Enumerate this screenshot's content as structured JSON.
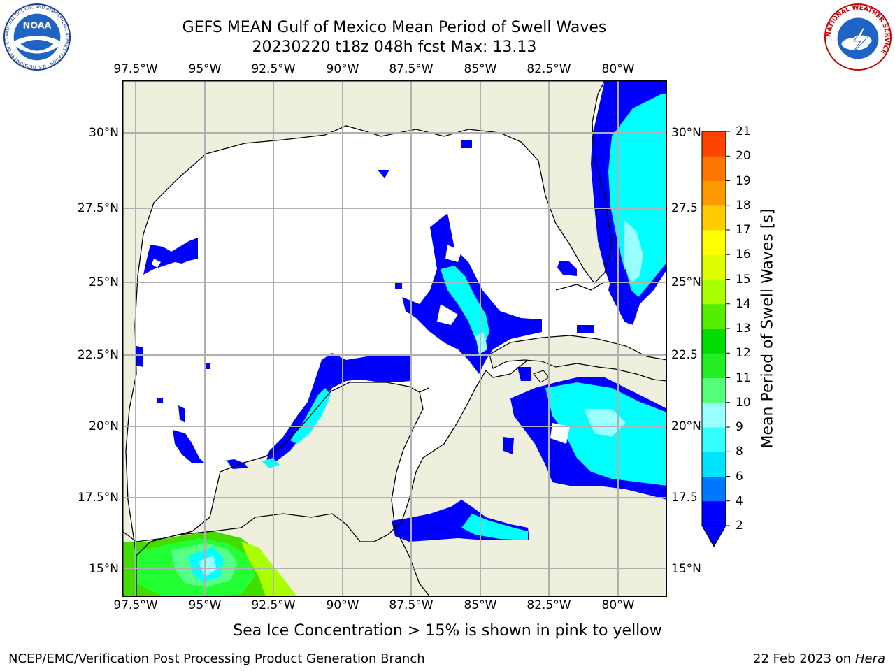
{
  "title": "GEFS MEAN Gulf of Mexico Mean Period of Swell Waves",
  "subtitle": "20230220 t18z 048h fcst   Max: 13.13",
  "lon_labels": [
    "97.5°W",
    "95°W",
    "92.5°W",
    "90°W",
    "87.5°W",
    "85°W",
    "82.5°W",
    "80°W"
  ],
  "lat_labels_left": [
    "30°N",
    "27.5°N",
    "25°N",
    "22.5°N",
    "20°N",
    "17.5°N",
    "15°N"
  ],
  "lat_labels_right": [
    "30°N",
    "27.5",
    "25°N",
    "22.5",
    "20°N",
    "17.5",
    "15°N"
  ],
  "colorbar": {
    "label": "Mean Period of Swell Waves [s]",
    "ticks": [
      "2",
      "4",
      "6",
      "8",
      "9",
      "10",
      "11",
      "12",
      "13",
      "14",
      "15",
      "16",
      "17",
      "18",
      "19",
      "20",
      "21"
    ],
    "colors": [
      "#0000ff",
      "#0077ff",
      "#00e5ff",
      "#33ffff",
      "#99ffff",
      "#55ff77",
      "#22ee22",
      "#00dd00",
      "#55ee00",
      "#aaff00",
      "#ddff00",
      "#ffff00",
      "#ffcc00",
      "#ff9900",
      "#ff7700",
      "#ff4400",
      "#ff0000"
    ]
  },
  "note": "Sea Ice Concentration > 15% is shown in pink to yellow",
  "footer_left": "NCEP/EMC/Verification Post Processing Product Generation Branch",
  "footer_date": "22 Feb 2023 on",
  "footer_host": "Hera",
  "logos": {
    "noaa_text": "NOAA",
    "noaa_ring": "NATIONAL OCEANIC AND ATMOSPHERIC ADMINISTRATION · U.S. DEPARTMENT OF COMMERCE",
    "nws_ring": "NATIONAL WEATHER SERVICE"
  },
  "colors": {
    "land": "#efefde",
    "grid": "#b0b0b0",
    "blue": "#0000ff",
    "cyan": "#00ffff",
    "light_cyan": "#99ffff",
    "green": "#22dd00",
    "yellowgreen": "#88ff00"
  }
}
